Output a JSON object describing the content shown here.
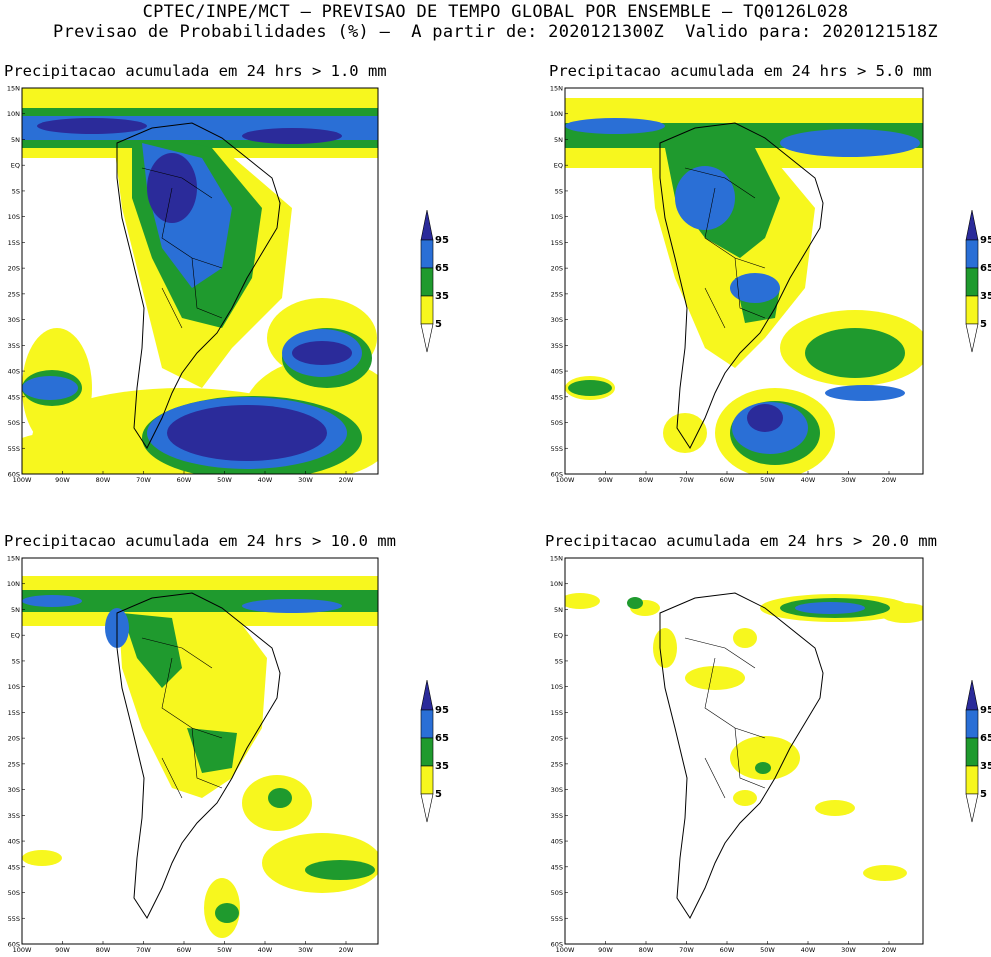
{
  "header": {
    "line1": "CPTEC/INPE/MCT — PREVISAO DE TEMPO GLOBAL POR ENSEMBLE — TQ0126L028",
    "line2": "Previsao de Probabilidades (%) —  A partir de: 2020121300Z  Valido para: 2020121518Z"
  },
  "axes": {
    "lat_labels": [
      "15N",
      "10N",
      "5N",
      "EQ",
      "5S",
      "10S",
      "15S",
      "20S",
      "25S",
      "30S",
      "35S",
      "40S",
      "45S",
      "50S",
      "55S",
      "60S"
    ],
    "lon_labels": [
      "100W",
      "90W",
      "80W",
      "70W",
      "60W",
      "50W",
      "40W",
      "30W",
      "20W"
    ]
  },
  "colorbar": {
    "labels": [
      "95",
      "65",
      "35",
      "5"
    ],
    "colors": {
      "c95": "#2b2b9a",
      "c65": "#2a6fd6",
      "c35": "#1f9a2e",
      "c5": "#f7f71e"
    }
  },
  "panels": [
    {
      "title": "Precipitacao acumulada em 24 hrs > 1.0 mm"
    },
    {
      "title": "Precipitacao acumulada em 24 hrs > 5.0 mm"
    },
    {
      "title": "Precipitacao acumulada em 24 hrs > 10.0 mm"
    },
    {
      "title": "Precipitacao acumulada em 24 hrs > 20.0 mm"
    }
  ]
}
